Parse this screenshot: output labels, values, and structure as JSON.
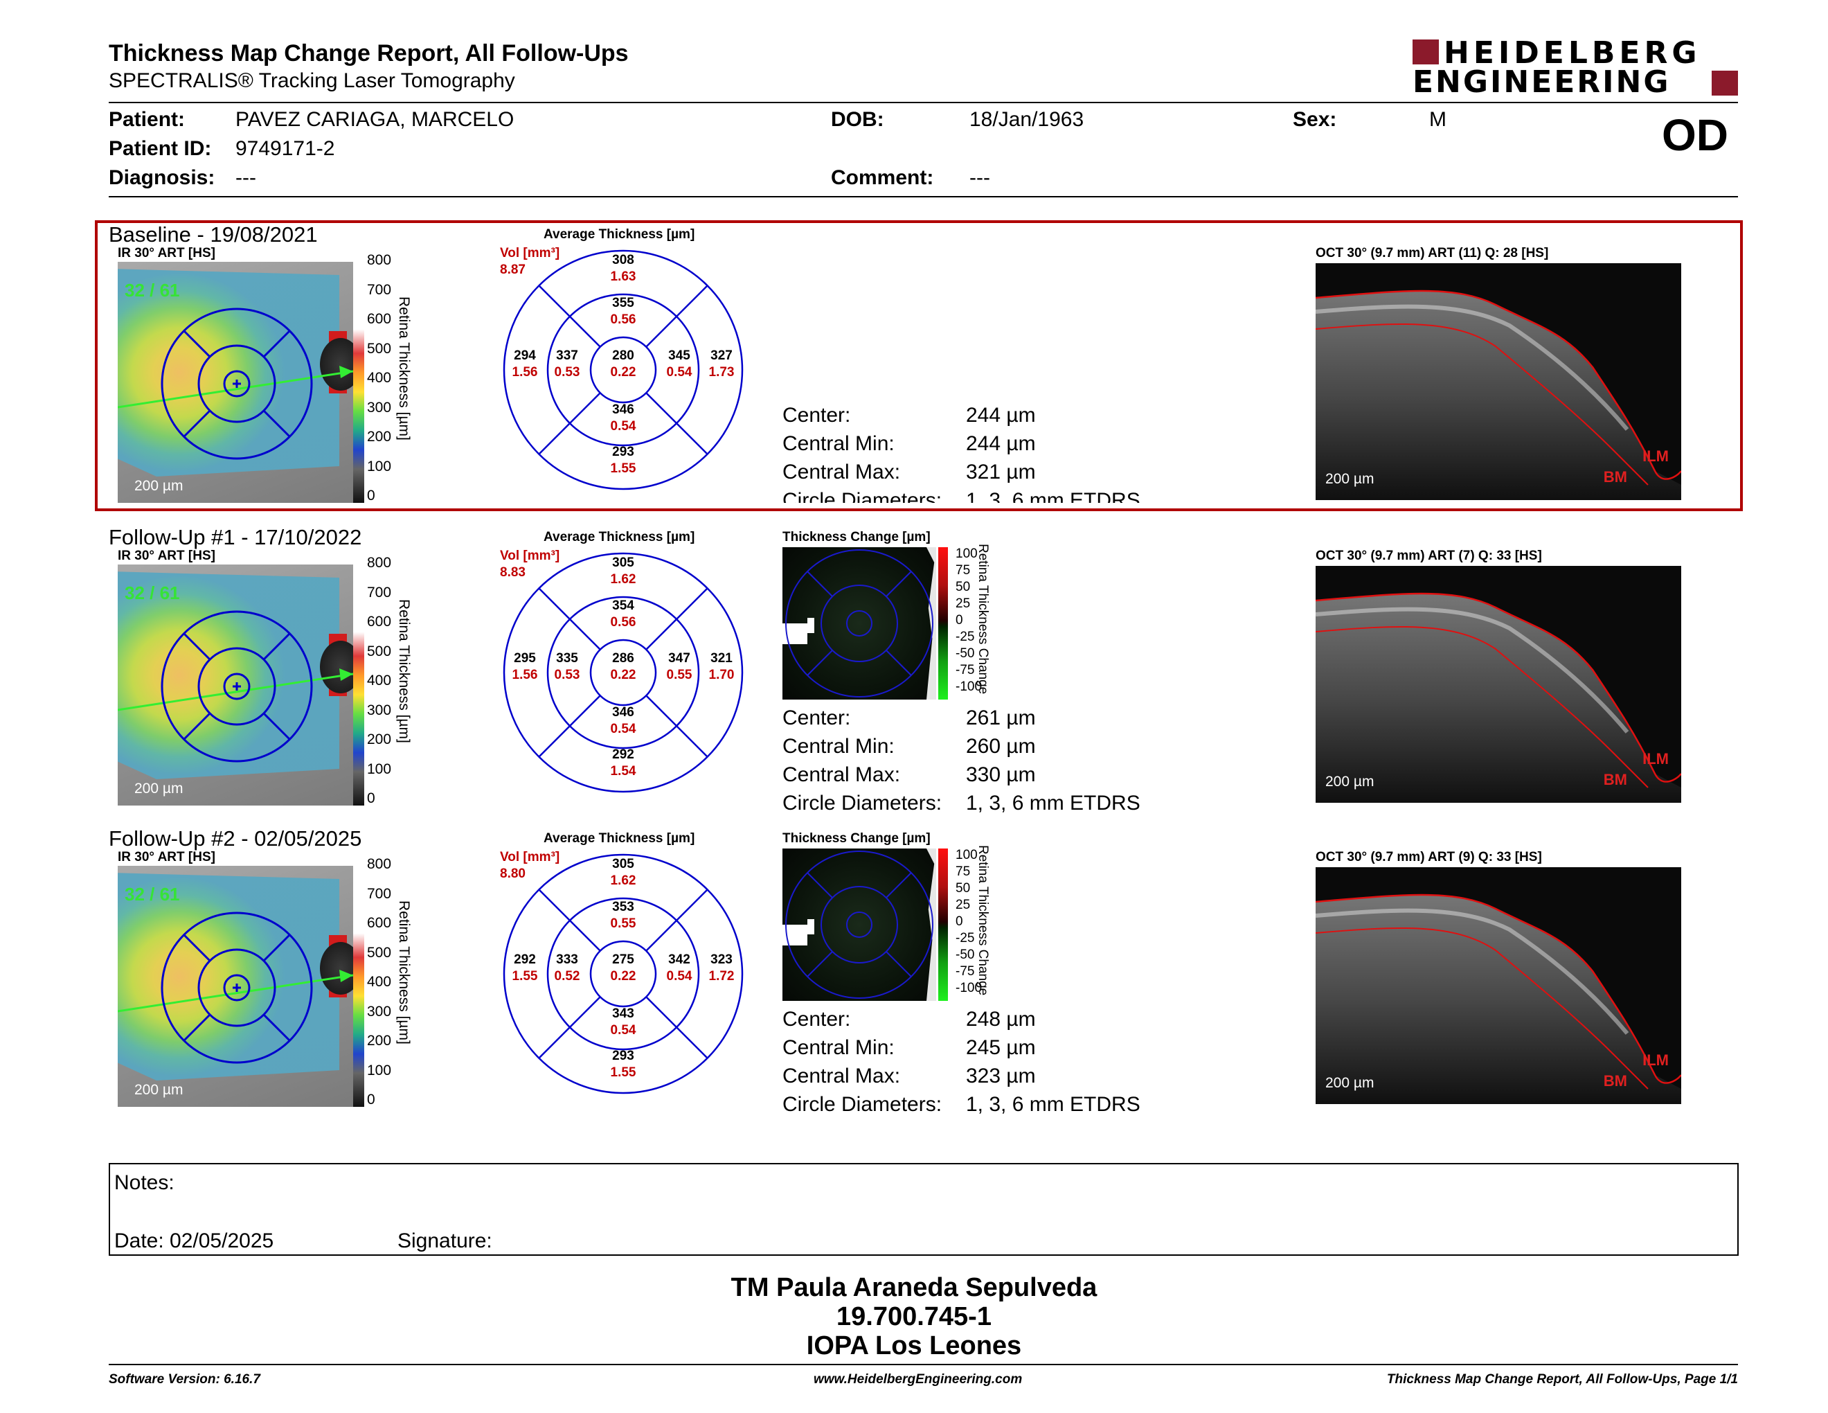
{
  "header": {
    "title": "Thickness Map Change Report, All Follow-Ups",
    "subtitle": "SPECTRALIS® Tracking Laser Tomography",
    "logo_line1": "HEIDELBERG",
    "logo_line2": "ENGINEERING",
    "eye": "OD"
  },
  "patient": {
    "patient_label": "Patient:",
    "patient_value": "PAVEZ CARIAGA, MARCELO",
    "id_label": "Patient ID:",
    "id_value": "9749171-2",
    "diagnosis_label": "Diagnosis:",
    "diagnosis_value": "---",
    "dob_label": "DOB:",
    "dob_value": "18/Jan/1963",
    "comment_label": "Comment:",
    "comment_value": "---",
    "sex_label": "Sex:",
    "sex_value": "M"
  },
  "common": {
    "ir_label": "IR 30° ART [HS]",
    "fundus_count": "32 / 61",
    "scale": "200 µm",
    "colorbar_ticks": [
      "800",
      "700",
      "600",
      "500",
      "400",
      "300",
      "200",
      "100",
      "0"
    ],
    "colorbar_title": "Retina Thickness [µm]",
    "avg_title": "Average Thickness [µm]",
    "vol_label": "Vol [mm³]",
    "change_title": "Thickness Change [µm]",
    "change_ticks": [
      "100",
      "75",
      "50",
      "25",
      "0",
      "-25",
      "-50",
      "-75",
      "-100"
    ],
    "change_bar_title": "Retina Thickness Change",
    "center_label": "Center:",
    "min_label": "Central Min:",
    "max_label": "Central Max:",
    "circle_label": "Circle Diameters:",
    "circle_value": "1, 3, 6 mm ETDRS",
    "ilm": "ILM",
    "bm": "BM"
  },
  "exams": [
    {
      "title": "Baseline - 19/08/2021",
      "vol": "8.87",
      "sectors": {
        "s_out": [
          "308",
          "1.63"
        ],
        "s_in": [
          "355",
          "0.56"
        ],
        "t_out": [
          "294",
          "1.56"
        ],
        "t_in": [
          "337",
          "0.53"
        ],
        "c": [
          "280",
          "0.22"
        ],
        "n_in": [
          "345",
          "0.54"
        ],
        "n_out": [
          "327",
          "1.73"
        ],
        "i_in": [
          "346",
          "0.54"
        ],
        "i_out": [
          "293",
          "1.55"
        ]
      },
      "center": "244 µm",
      "min": "244 µm",
      "max": "321 µm",
      "oct_label": "OCT 30° (9.7 mm) ART (11) Q: 28 [HS]"
    },
    {
      "title": "Follow-Up #1 - 17/10/2022",
      "vol": "8.83",
      "sectors": {
        "s_out": [
          "305",
          "1.62"
        ],
        "s_in": [
          "354",
          "0.56"
        ],
        "t_out": [
          "295",
          "1.56"
        ],
        "t_in": [
          "335",
          "0.53"
        ],
        "c": [
          "286",
          "0.22"
        ],
        "n_in": [
          "347",
          "0.55"
        ],
        "n_out": [
          "321",
          "1.70"
        ],
        "i_in": [
          "346",
          "0.54"
        ],
        "i_out": [
          "292",
          "1.54"
        ]
      },
      "center": "261 µm",
      "min": "260 µm",
      "max": "330 µm",
      "oct_label": "OCT 30° (9.7 mm) ART (7) Q: 33 [HS]"
    },
    {
      "title": "Follow-Up #2 - 02/05/2025",
      "vol": "8.80",
      "sectors": {
        "s_out": [
          "305",
          "1.62"
        ],
        "s_in": [
          "353",
          "0.55"
        ],
        "t_out": [
          "292",
          "1.55"
        ],
        "t_in": [
          "333",
          "0.52"
        ],
        "c": [
          "275",
          "0.22"
        ],
        "n_in": [
          "342",
          "0.54"
        ],
        "n_out": [
          "323",
          "1.72"
        ],
        "i_in": [
          "343",
          "0.54"
        ],
        "i_out": [
          "293",
          "1.55"
        ]
      },
      "center": "248 µm",
      "min": "245 µm",
      "max": "323 µm",
      "oct_label": "OCT 30° (9.7 mm) ART (9) Q: 33 [HS]"
    }
  ],
  "notes": {
    "notes_label": "Notes:",
    "date_label": "Date: 02/05/2025",
    "signature_label": "Signature:"
  },
  "stamp": {
    "line1": "TM Paula Araneda Sepulveda",
    "line2": "19.700.745-1",
    "line3": "IOPA Los Leones"
  },
  "footer": {
    "software": "Software Version: 6.16.7",
    "website": "www.HeidelbergEngineering.com",
    "page": "Thickness Map Change Report, All Follow-Ups, Page 1/1"
  },
  "colors": {
    "highlight_box": "#b00000",
    "grid_blue": "#0000cc",
    "logo_red": "#8b1a2b"
  }
}
